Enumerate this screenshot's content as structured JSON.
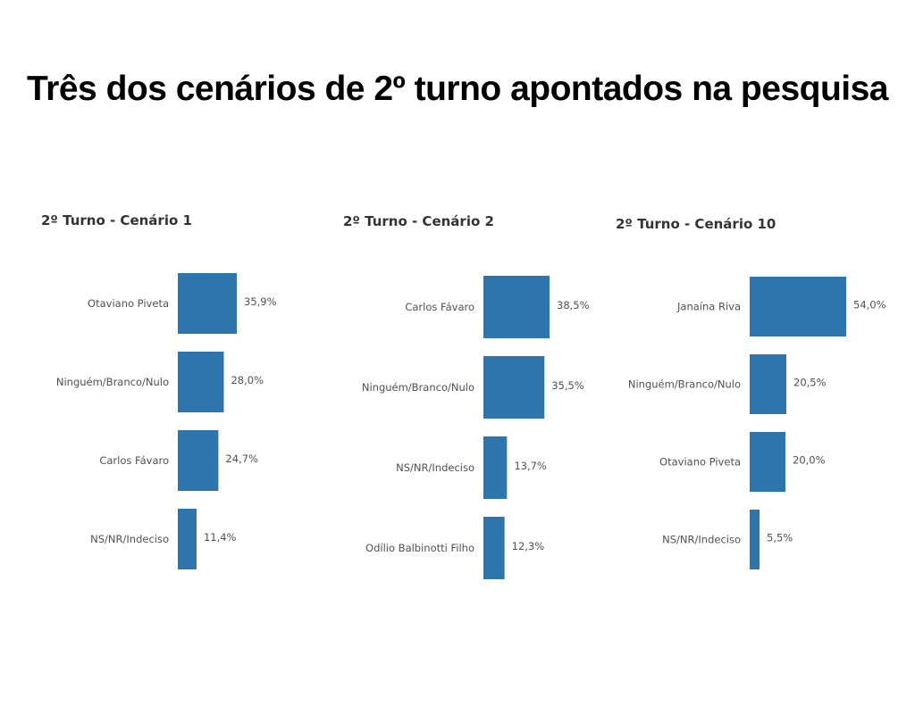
{
  "page": {
    "title": "Três dos cenários de 2º turno apontados na pesquisa"
  },
  "colors": {
    "bar": "#2E75AE",
    "chart_text": "#505050",
    "chart_title": "#333333",
    "page_title": "#000000"
  },
  "chart_data": [
    {
      "type": "bar",
      "orientation": "horizontal",
      "title": "2º Turno - Cenário 1",
      "categories": [
        "Otaviano Piveta",
        "Ninguém/Branco/Nulo",
        "Carlos Fávaro",
        "NS/NR/Indeciso"
      ],
      "values": [
        35.9,
        28.0,
        24.7,
        11.4
      ],
      "value_labels": [
        "35,9%",
        "28,0%",
        "24,7%",
        "11,4%"
      ]
    },
    {
      "type": "bar",
      "orientation": "horizontal",
      "title": "2º Turno - Cenário 2",
      "categories": [
        "Carlos Fávaro",
        "Ninguém/Branco/Nulo",
        "NS/NR/Indeciso",
        "Odílio Balbinotti Filho"
      ],
      "values": [
        38.5,
        35.5,
        13.7,
        12.3
      ],
      "value_labels": [
        "38,5%",
        "35,5%",
        "13,7%",
        "12,3%"
      ]
    },
    {
      "type": "bar",
      "orientation": "horizontal",
      "title": "2º Turno - Cenário 10",
      "categories": [
        "Janaína Riva",
        "Ninguém/Branco/Nulo",
        "Otaviano Piveta",
        "NS/NR/Indeciso"
      ],
      "values": [
        54.0,
        20.5,
        20.0,
        5.5
      ],
      "value_labels": [
        "54,0%",
        "20,5%",
        "20,0%",
        "5,5%"
      ]
    }
  ]
}
